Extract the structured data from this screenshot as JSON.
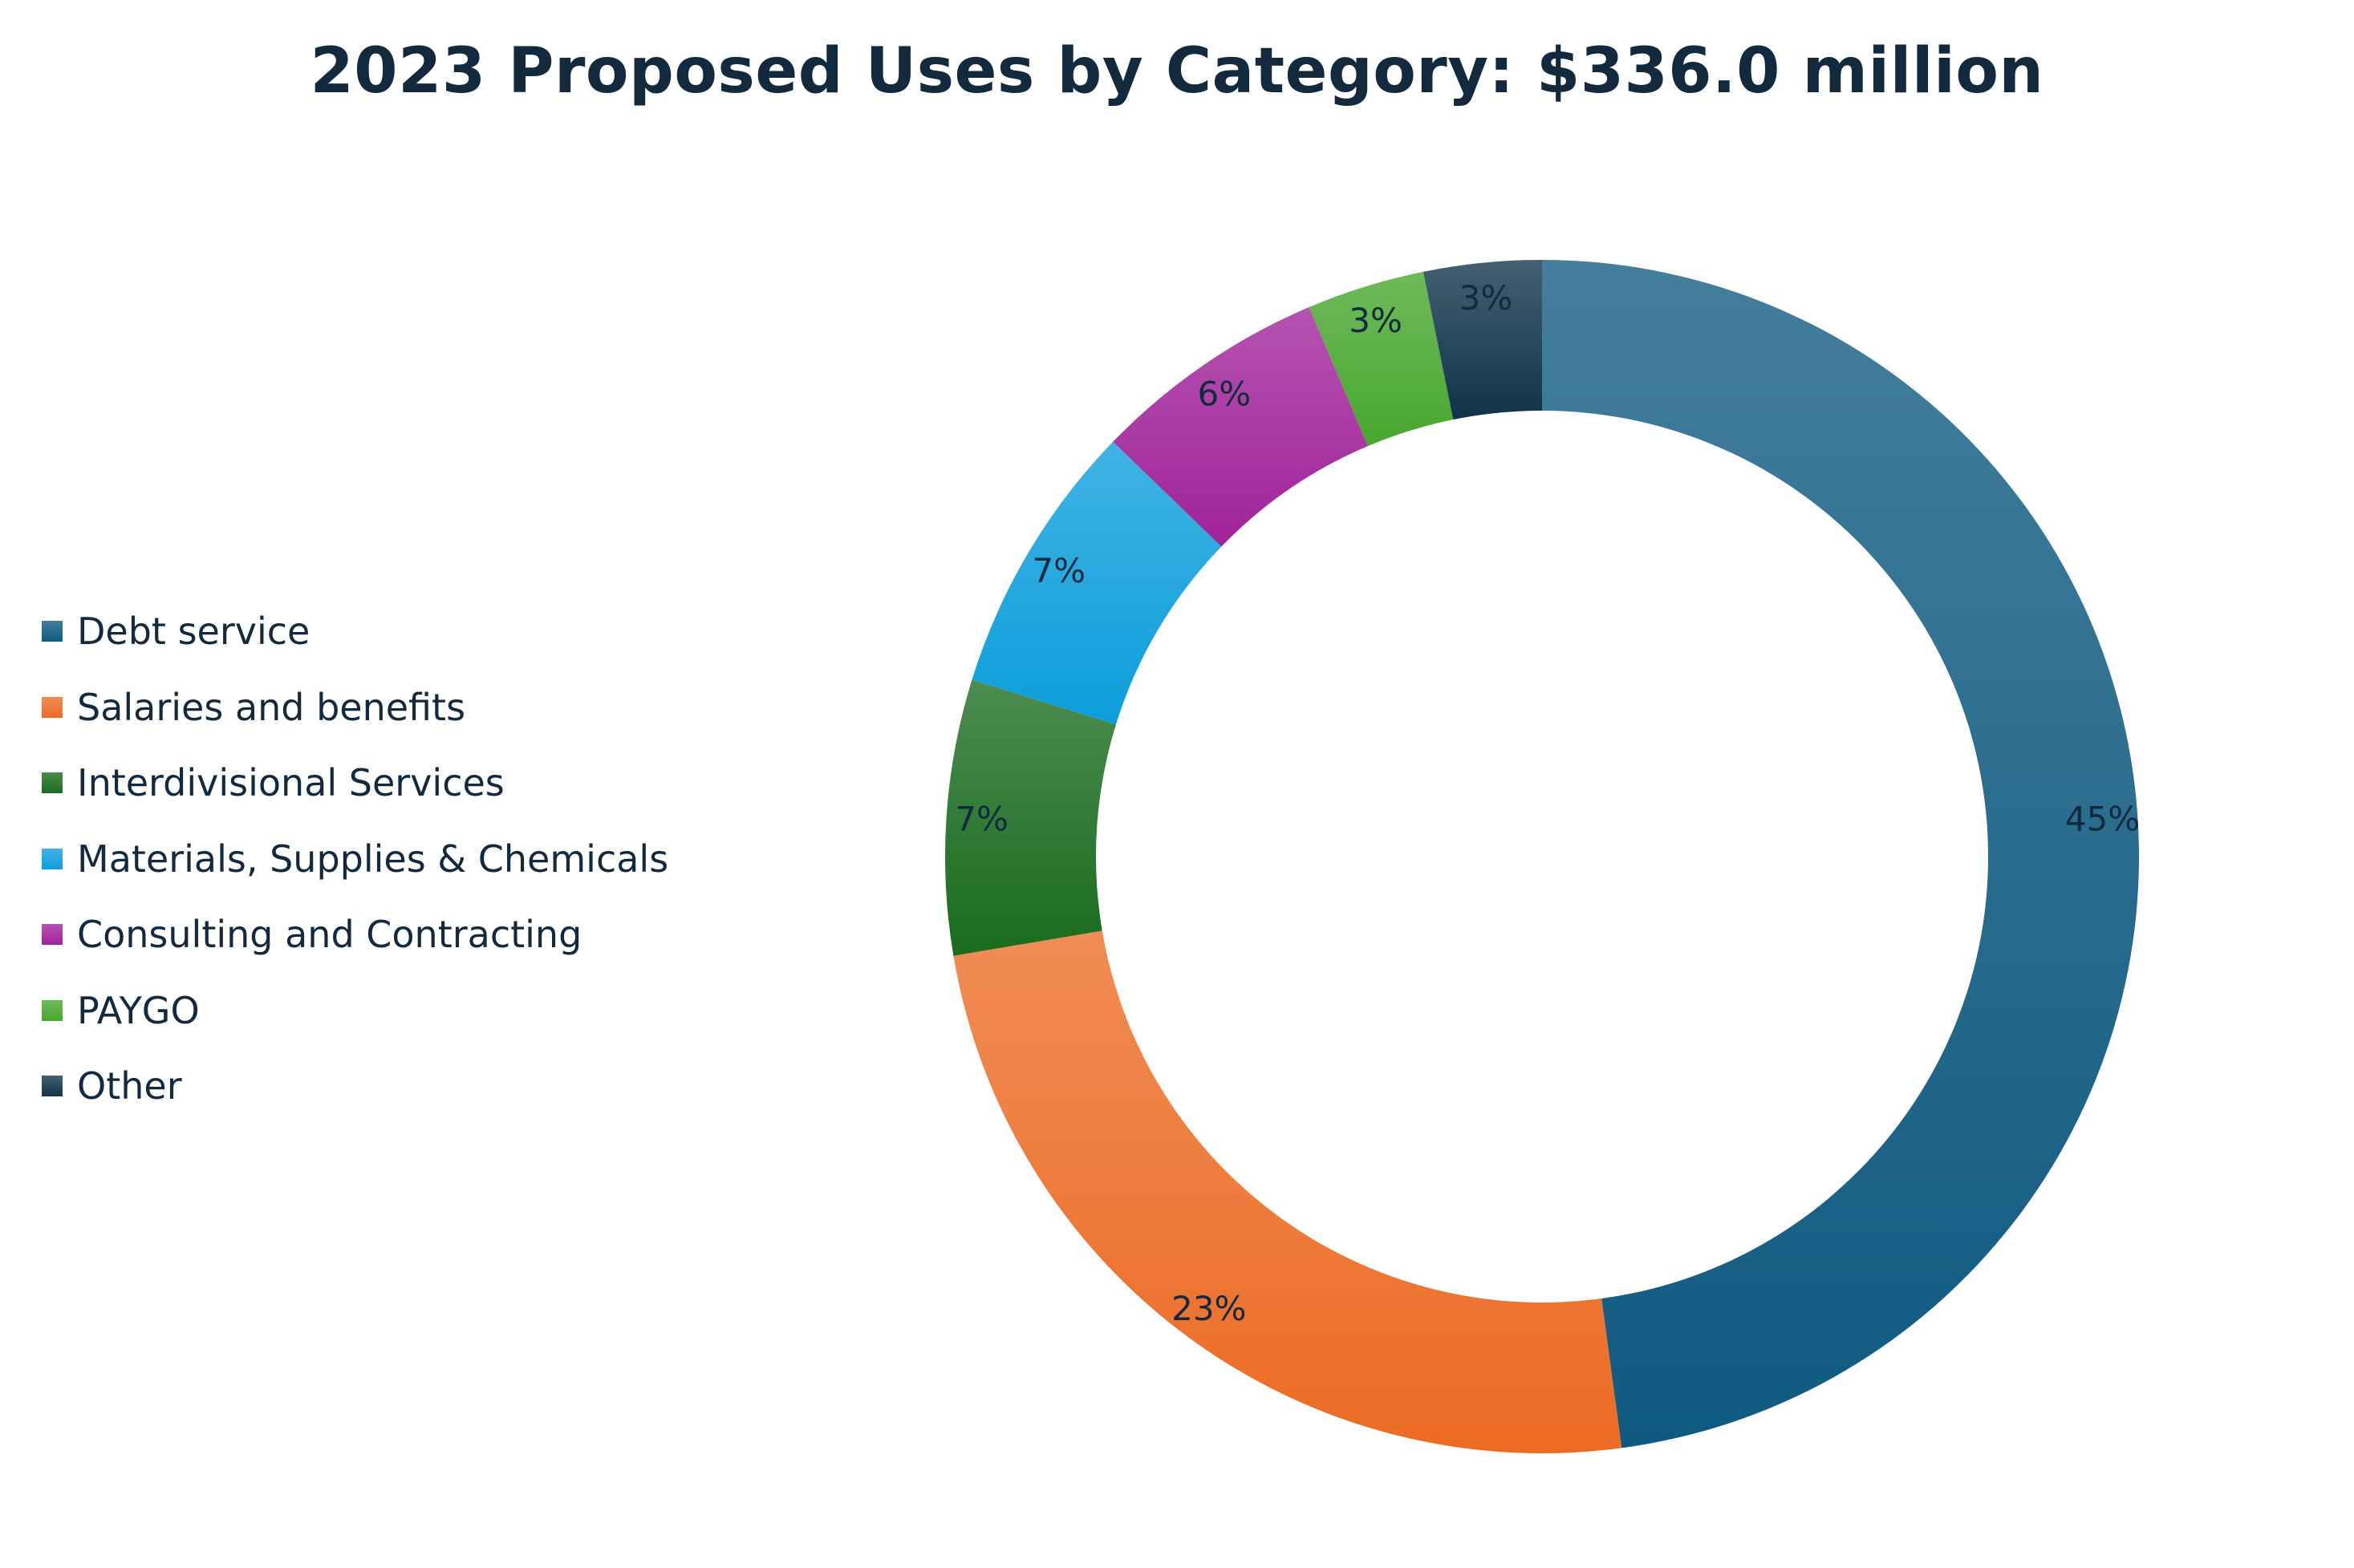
{
  "chart_data": {
    "type": "pie",
    "variant": "donut",
    "title": "2023 Proposed Uses by Category: $336.0 million",
    "legend_position": "left",
    "slices": [
      {
        "label": "Debt service",
        "value": 45,
        "display": "45%",
        "color": "#0f5a80"
      },
      {
        "label": "Salaries and benefits",
        "value": 23,
        "display": "23%",
        "color": "#ec6b24"
      },
      {
        "label": "Interdivisional Services",
        "value": 7,
        "display": "7%",
        "color": "#1a6b1f"
      },
      {
        "label": "Materials, Supplies & Chemicals",
        "value": 7,
        "display": "7%",
        "color": "#0c9edb"
      },
      {
        "label": "Consulting and Contracting",
        "value": 6,
        "display": "6%",
        "color": "#a0239a"
      },
      {
        "label": "PAYGO",
        "value": 3,
        "display": "3%",
        "color": "#47a72d"
      },
      {
        "label": "Other",
        "value": 3,
        "display": "3%",
        "color": "#0f3349"
      }
    ]
  }
}
